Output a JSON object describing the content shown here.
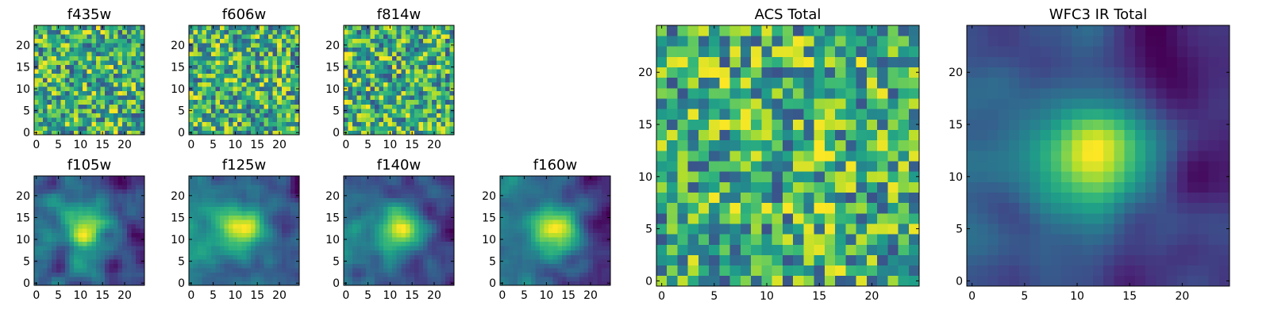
{
  "figure": {
    "colormap": "viridis",
    "colors": {
      "low": "#440154",
      "mid": "#21918c",
      "high": "#fde725",
      "background": "#ffffff"
    }
  },
  "chart_data": [
    {
      "type": "heatmap",
      "title": "f435w",
      "grid_size": 25,
      "seed": 11,
      "smooth": 0,
      "center": [
        12,
        12
      ],
      "peak": 0.0,
      "xticks": [
        0,
        5,
        10,
        15,
        20
      ],
      "yticks": [
        0,
        5,
        10,
        15,
        20
      ]
    },
    {
      "type": "heatmap",
      "title": "f606w",
      "grid_size": 25,
      "seed": 23,
      "smooth": 0,
      "center": [
        12,
        12
      ],
      "peak": 0.0,
      "xticks": [
        0,
        5,
        10,
        15,
        20
      ],
      "yticks": [
        0,
        5,
        10,
        15,
        20
      ]
    },
    {
      "type": "heatmap",
      "title": "f814w",
      "grid_size": 25,
      "seed": 37,
      "smooth": 0,
      "center": [
        12,
        12
      ],
      "peak": 0.0,
      "xticks": [
        0,
        5,
        10,
        15,
        20
      ],
      "yticks": [
        0,
        5,
        10,
        15,
        20
      ]
    },
    {
      "type": "heatmap",
      "title": "f105w",
      "grid_size": 25,
      "seed": 41,
      "smooth": 2,
      "center": [
        11,
        12
      ],
      "peak": 0.5,
      "xticks": [
        0,
        5,
        10,
        15,
        20
      ],
      "yticks": [
        0,
        5,
        10,
        15,
        20
      ]
    },
    {
      "type": "heatmap",
      "title": "f125w",
      "grid_size": 25,
      "seed": 53,
      "smooth": 2,
      "center": [
        12,
        12
      ],
      "peak": 0.6,
      "xticks": [
        0,
        5,
        10,
        15,
        20
      ],
      "yticks": [
        0,
        5,
        10,
        15,
        20
      ]
    },
    {
      "type": "heatmap",
      "title": "f140w",
      "grid_size": 25,
      "seed": 67,
      "smooth": 2,
      "center": [
        12,
        12
      ],
      "peak": 0.7,
      "xticks": [
        0,
        5,
        10,
        15,
        20
      ],
      "yticks": [
        0,
        5,
        10,
        15,
        20
      ]
    },
    {
      "type": "heatmap",
      "title": "f160w",
      "grid_size": 25,
      "seed": 79,
      "smooth": 2,
      "center": [
        12,
        12
      ],
      "peak": 0.8,
      "xticks": [
        0,
        5,
        10,
        15,
        20
      ],
      "yticks": [
        0,
        5,
        10,
        15,
        20
      ]
    },
    {
      "type": "heatmap",
      "title": "ACS Total",
      "grid_size": 25,
      "seed": 97,
      "smooth": 0,
      "center": [
        12,
        12
      ],
      "peak": 0.0,
      "xticks": [
        0,
        5,
        10,
        15,
        20
      ],
      "yticks": [
        0,
        5,
        10,
        15,
        20
      ]
    },
    {
      "type": "heatmap",
      "title": "WFC3 IR Total",
      "grid_size": 25,
      "seed": 103,
      "smooth": 3,
      "center": [
        12,
        12
      ],
      "peak": 1.0,
      "xticks": [
        0,
        5,
        10,
        15,
        20
      ],
      "yticks": [
        0,
        5,
        10,
        15,
        20
      ]
    }
  ]
}
